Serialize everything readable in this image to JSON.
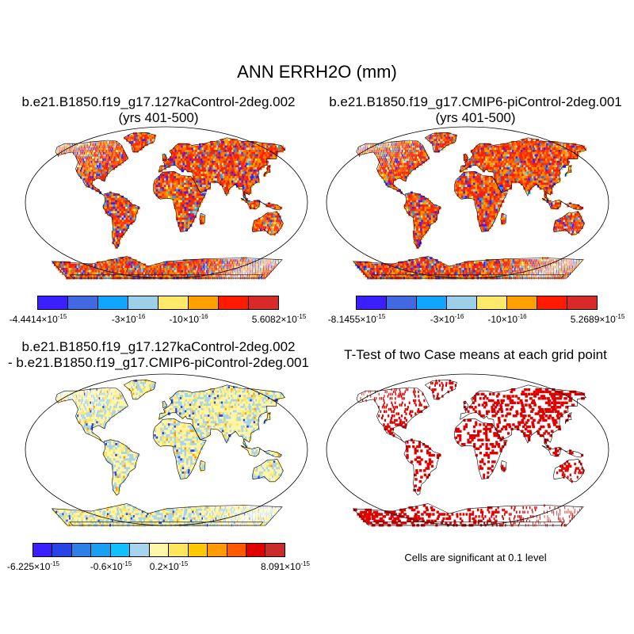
{
  "figure": {
    "title": "ANN ERRH2O (mm)"
  },
  "panels": [
    {
      "id": "a",
      "title_line1": "b.e21.B1850.f19_g17.127kaControl-2deg.002",
      "title_line2": "(yrs 401-500)",
      "colorbar": {
        "colors": [
          "#3a1fff",
          "#4169e1",
          "#10a5ff",
          "#9ecfe8",
          "#ffe96b",
          "#ff9f00",
          "#ff1a00",
          "#d92a2a"
        ],
        "labels": [
          {
            "base": "-4.4414",
            "exp": "-15"
          },
          {
            "base": "-3",
            "exp": "-16"
          },
          {
            "base": "-10",
            "exp": "-16"
          },
          {
            "base": "5.6082",
            "exp": "-15"
          }
        ]
      }
    },
    {
      "id": "b",
      "title_line1": "b.e21.B1850.f19_g17.CMIP6-piControl-2deg.001",
      "title_line2": "(yrs 401-500)",
      "colorbar": {
        "colors": [
          "#3a1fff",
          "#4169e1",
          "#10a5ff",
          "#9ecfe8",
          "#ffe96b",
          "#ff9f00",
          "#ff1a00",
          "#d92a2a"
        ],
        "labels": [
          {
            "base": "-8.1455",
            "exp": "-15"
          },
          {
            "base": "-3",
            "exp": "-16"
          },
          {
            "base": "-10",
            "exp": "-16"
          },
          {
            "base": "5.2689",
            "exp": "-15"
          }
        ]
      }
    },
    {
      "id": "c",
      "title_line1": "b.e21.B1850.f19_g17.127kaControl-2deg.002",
      "title_line2": "- b.e21.B1850.f19_g17.CMIP6-piControl-2deg.001",
      "colorbar": {
        "colors": [
          "#3a1fff",
          "#2844e6",
          "#2f7fe8",
          "#1aa0f0",
          "#10c0ff",
          "#a6d4ee",
          "#fff6a8",
          "#ffe65a",
          "#ffc800",
          "#ff9b00",
          "#ff5a00",
          "#e10000",
          "#cc2b2b"
        ],
        "labels": [
          {
            "base": "-6.225",
            "exp": "-15"
          },
          {
            "base": "-0.6",
            "exp": "-15"
          },
          {
            "base": "0.2",
            "exp": "-15"
          },
          {
            "base": "8.091",
            "exp": "-15"
          }
        ]
      }
    },
    {
      "id": "d",
      "title_line1": "T-Test of two Case means at each grid point",
      "title_line2": "",
      "note": "Cells are significant at 0.1 level"
    }
  ],
  "colors": {
    "land_outline": "#000000",
    "significance": "#e00000"
  }
}
